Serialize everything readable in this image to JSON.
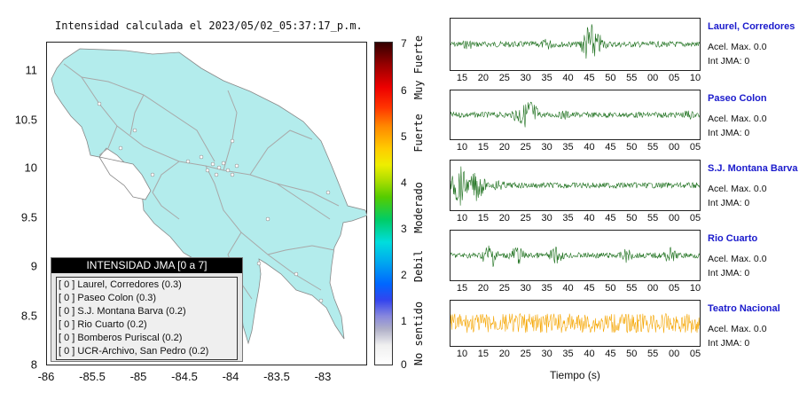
{
  "map": {
    "title": "Intensidad calculada el 2023/05/02_05:37:17_p.m.",
    "y_ticks": [
      "11",
      "10.5",
      "10",
      "9.5",
      "9",
      "8.5",
      "8"
    ],
    "x_ticks": [
      "-86",
      "-85.5",
      "-85",
      "-84.5",
      "-84",
      "-83.5",
      "-83"
    ],
    "land_color": "#b3ecec",
    "background_color": "#ffffff"
  },
  "legend": {
    "header": "INTENSIDAD JMA [0 a 7]",
    "items": [
      "[ 0 ]  Laurel, Corredores (0.3)",
      "[ 0 ]  Paseo Colon (0.3)",
      "[ 0 ]  S.J. Montana Barva (0.2)",
      "[ 0 ]  Rio Cuarto (0.2)",
      "[ 0 ]  Bomberos Puriscal (0.2)",
      "[ 0 ]  UCR-Archivo, San Pedro (0.2)"
    ]
  },
  "colorbar": {
    "numbers": [
      "7",
      "6",
      "5",
      "4",
      "3",
      "2",
      "1",
      "0"
    ],
    "categories": [
      "Muy Fuerte",
      "Fuerte",
      "Moderado",
      "Debil",
      "No sentido"
    ]
  },
  "traces": [
    {
      "station": "Laurel, Corredores",
      "accel": "Acel. Max. 0.0",
      "jma": "Int JMA: 0",
      "color": "#1a6e1a",
      "ticks": [
        "15",
        "20",
        "25",
        "30",
        "35",
        "40",
        "45",
        "50",
        "55",
        "00",
        "05",
        "10"
      ]
    },
    {
      "station": "Paseo Colon",
      "accel": "Acel. Max. 0.0",
      "jma": "Int JMA: 0",
      "color": "#1a6e1a",
      "ticks": [
        "10",
        "15",
        "20",
        "25",
        "30",
        "35",
        "40",
        "45",
        "50",
        "55",
        "00",
        "05"
      ]
    },
    {
      "station": "S.J. Montana Barva",
      "accel": "Acel. Max. 0.0",
      "jma": "Int JMA: 0",
      "color": "#1a6e1a",
      "ticks": [
        "10",
        "15",
        "20",
        "25",
        "30",
        "35",
        "40",
        "45",
        "50",
        "55",
        "00",
        "05"
      ]
    },
    {
      "station": "Rio Cuarto",
      "accel": "Acel. Max. 0.0",
      "jma": "Int JMA: 0",
      "color": "#1a6e1a",
      "ticks": [
        "15",
        "20",
        "25",
        "30",
        "35",
        "40",
        "45",
        "50",
        "55",
        "00",
        "05",
        "10"
      ]
    },
    {
      "station": "Teatro Nacional",
      "accel": "Acel. Max. 0.0",
      "jma": "Int JMA: 0",
      "color": "#f5a500",
      "ticks": [
        "10",
        "15",
        "20",
        "25",
        "30",
        "35",
        "40",
        "45",
        "50",
        "55",
        "00",
        "05"
      ]
    }
  ],
  "x_axis_label": "Tiempo (s)"
}
